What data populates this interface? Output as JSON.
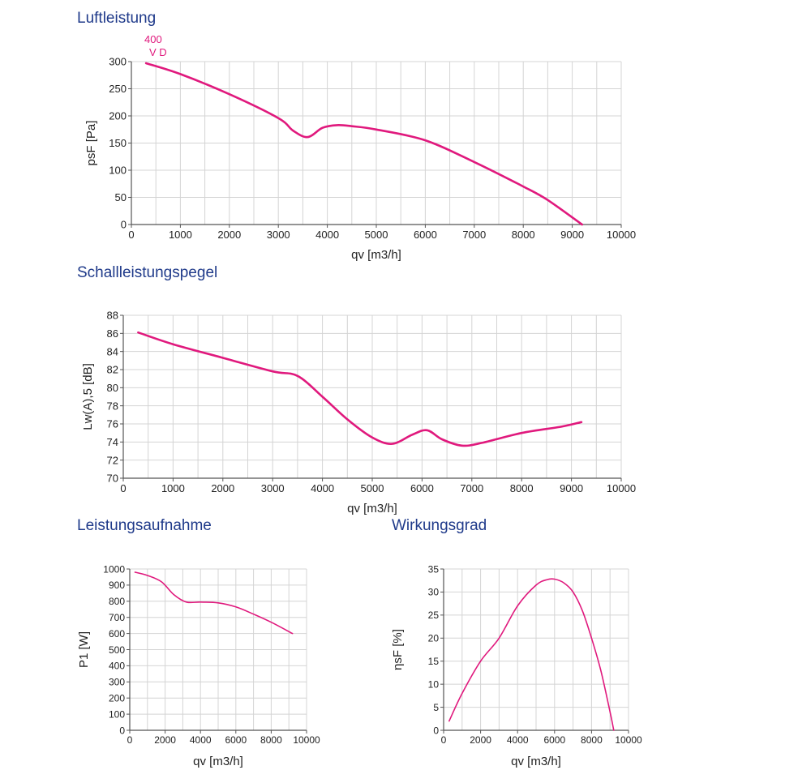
{
  "sections": {
    "luft": "Luftleistung",
    "schall": "Schallleistungspegel",
    "leist": "Leistungsaufnahme",
    "wirk": "Wirkungsgrad"
  },
  "colors": {
    "curve": "#e0197d",
    "grid": "#d4d4d4",
    "axis": "#555555"
  },
  "chart_data": [
    {
      "id": "luft",
      "type": "line",
      "xlabel": "qv [m3/h]",
      "ylabel": "psF [Pa]",
      "xlim": [
        0,
        10000
      ],
      "ylim": [
        0,
        300
      ],
      "xticks": [
        0,
        1000,
        2000,
        3000,
        4000,
        5000,
        6000,
        7000,
        8000,
        9000,
        10000
      ],
      "yticks": [
        0,
        50,
        100,
        150,
        200,
        250,
        300
      ],
      "grid": true,
      "series": [
        {
          "name": "400\nV D",
          "x": [
            300,
            1000,
            2000,
            3000,
            3300,
            3600,
            3900,
            4200,
            4500,
            5000,
            6000,
            7000,
            8000,
            8500,
            9200
          ],
          "y": [
            297,
            277,
            240,
            196,
            173,
            161,
            178,
            183,
            181,
            175,
            155,
            115,
            70,
            45,
            0
          ]
        }
      ],
      "annotation": [
        "400",
        "V D"
      ]
    },
    {
      "id": "schall",
      "type": "line",
      "xlabel": "qv [m3/h]",
      "ylabel": "Lw(A),5 [dB]",
      "xlim": [
        0,
        10000
      ],
      "ylim": [
        70,
        88
      ],
      "xticks": [
        0,
        1000,
        2000,
        3000,
        4000,
        5000,
        6000,
        7000,
        8000,
        9000,
        10000
      ],
      "yticks": [
        70,
        72,
        74,
        76,
        78,
        80,
        82,
        84,
        86,
        88
      ],
      "grid": true,
      "series": [
        {
          "x": [
            300,
            1000,
            2000,
            3000,
            3500,
            4000,
            4500,
            5000,
            5400,
            5800,
            6100,
            6400,
            6800,
            7200,
            8000,
            8800,
            9200
          ],
          "y": [
            86.1,
            84.8,
            83.3,
            81.8,
            81.3,
            79,
            76.5,
            74.5,
            73.8,
            74.8,
            75.3,
            74.3,
            73.6,
            73.9,
            75,
            75.7,
            76.2
          ]
        }
      ]
    },
    {
      "id": "leist",
      "type": "line",
      "xlabel": "qv [m3/h]",
      "ylabel": "P1 [W]",
      "xlim": [
        0,
        10000
      ],
      "ylim": [
        0,
        1000
      ],
      "xticks": [
        0,
        2000,
        4000,
        6000,
        8000,
        10000
      ],
      "yticks": [
        0,
        100,
        200,
        300,
        400,
        500,
        600,
        700,
        800,
        900,
        1000
      ],
      "grid": true,
      "series": [
        {
          "x": [
            300,
            1000,
            1800,
            2500,
            3200,
            4000,
            5000,
            6000,
            7000,
            8000,
            9200
          ],
          "y": [
            980,
            960,
            920,
            840,
            795,
            795,
            790,
            765,
            720,
            670,
            600
          ]
        }
      ]
    },
    {
      "id": "wirk",
      "type": "line",
      "xlabel": "qv [m3/h]",
      "ylabel": "ηsF [%]",
      "xlim": [
        0,
        10000
      ],
      "ylim": [
        0,
        35
      ],
      "xticks": [
        0,
        2000,
        4000,
        6000,
        8000,
        10000
      ],
      "yticks": [
        0,
        5,
        10,
        15,
        20,
        25,
        30,
        35
      ],
      "grid": true,
      "series": [
        {
          "x": [
            300,
            1000,
            2000,
            3000,
            4000,
            5000,
            5600,
            6000,
            6500,
            7000,
            7500,
            8000,
            8500,
            9000,
            9200
          ],
          "y": [
            2,
            8,
            15,
            20,
            27,
            31.5,
            32.7,
            32.8,
            32,
            30,
            26,
            20,
            13,
            4,
            0
          ]
        }
      ]
    }
  ]
}
